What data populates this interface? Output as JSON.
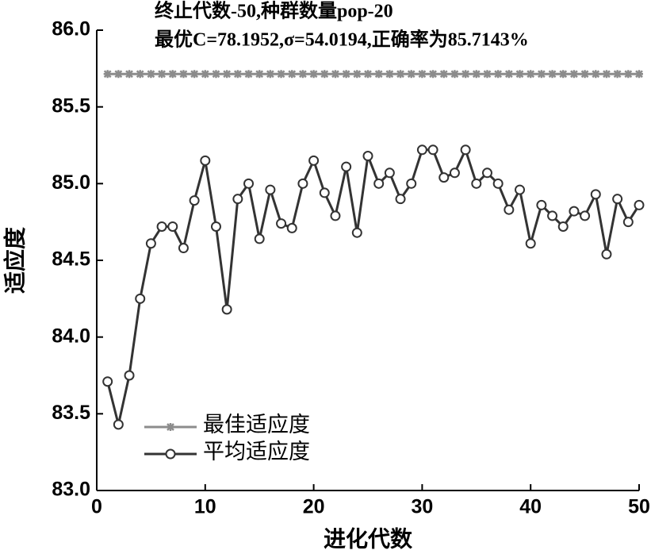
{
  "chart_data": {
    "type": "line",
    "title_lines": [
      "终止代数-50,种群数量pop-20",
      "最优C=78.1952,σ=54.0194,正确率为85.7143%"
    ],
    "x_label": "进化代数",
    "y_label": "适应度",
    "x": [
      1,
      2,
      3,
      4,
      5,
      6,
      7,
      8,
      9,
      10,
      11,
      12,
      13,
      14,
      15,
      16,
      17,
      18,
      19,
      20,
      21,
      22,
      23,
      24,
      25,
      26,
      27,
      28,
      29,
      30,
      31,
      32,
      33,
      34,
      35,
      36,
      37,
      38,
      39,
      40,
      41,
      42,
      43,
      44,
      45,
      46,
      47,
      48,
      49,
      50
    ],
    "series": [
      {
        "name": "最佳适应度",
        "color": "#8c8c8c",
        "marker": "star",
        "values": [
          85.7143,
          85.7143,
          85.7143,
          85.7143,
          85.7143,
          85.7143,
          85.7143,
          85.7143,
          85.7143,
          85.7143,
          85.7143,
          85.7143,
          85.7143,
          85.7143,
          85.7143,
          85.7143,
          85.7143,
          85.7143,
          85.7143,
          85.7143,
          85.7143,
          85.7143,
          85.7143,
          85.7143,
          85.7143,
          85.7143,
          85.7143,
          85.7143,
          85.7143,
          85.7143,
          85.7143,
          85.7143,
          85.7143,
          85.7143,
          85.7143,
          85.7143,
          85.7143,
          85.7143,
          85.7143,
          85.7143,
          85.7143,
          85.7143,
          85.7143,
          85.7143,
          85.7143,
          85.7143,
          85.7143,
          85.7143,
          85.7143,
          85.7143
        ]
      },
      {
        "name": "平均适应度",
        "color": "#333333",
        "marker": "circle",
        "values": [
          83.71,
          83.43,
          83.75,
          84.25,
          84.61,
          84.72,
          84.72,
          84.58,
          84.89,
          85.15,
          84.72,
          84.18,
          84.9,
          85.0,
          84.64,
          84.96,
          84.74,
          84.71,
          85.0,
          85.15,
          84.94,
          84.79,
          85.11,
          84.68,
          85.18,
          85.0,
          85.07,
          84.9,
          85.0,
          85.22,
          85.22,
          85.04,
          85.07,
          85.22,
          85.0,
          85.07,
          85.0,
          84.83,
          84.96,
          84.61,
          84.86,
          84.79,
          84.72,
          84.82,
          84.79,
          84.93,
          84.54,
          84.9,
          84.75,
          84.86
        ]
      }
    ],
    "xlim": [
      0,
      50
    ],
    "xticks": [
      0,
      10,
      20,
      30,
      40,
      50
    ],
    "ylim": [
      83,
      86
    ],
    "yticks": [
      {
        "value": 83,
        "label": "83.0"
      },
      83.5,
      {
        "value": 84,
        "label": "84.0"
      },
      84.5,
      {
        "value": 85,
        "label": "85.0"
      },
      85.5,
      {
        "value": 86,
        "label": "86.0"
      }
    ],
    "legend": "lower left"
  }
}
